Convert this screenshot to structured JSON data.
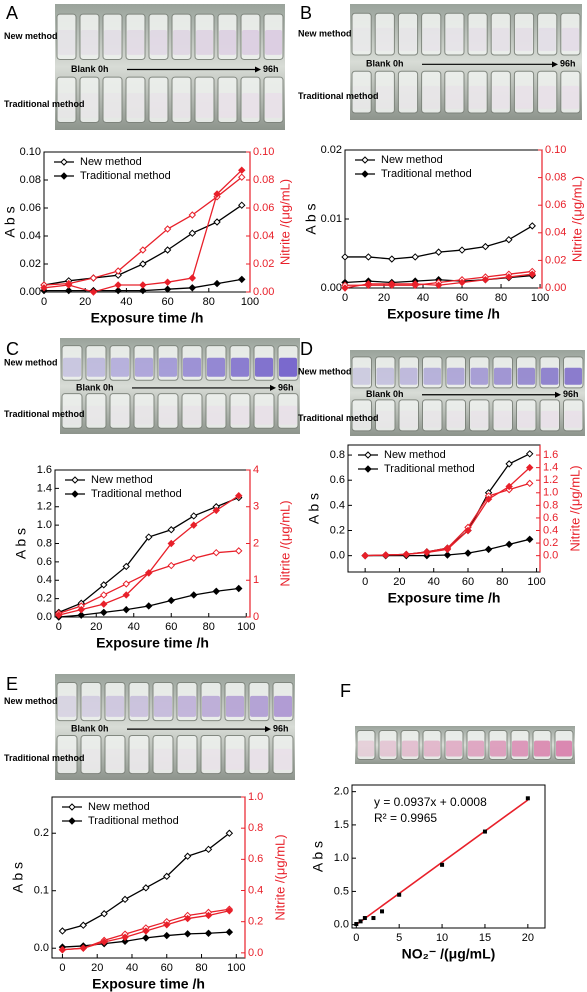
{
  "chart_data": [
    {
      "type": "dual-line",
      "panel": "A",
      "photo": {
        "top_label": "New method",
        "bottom_label": "Traditional method",
        "start": "Blank  0h",
        "end": "96h"
      },
      "x_label": "Exposure time /h",
      "y_label": "A b s",
      "y2_label": "Nitrite /(μg/mL)",
      "xlim": [
        0,
        100
      ],
      "xticks": [
        0,
        20,
        40,
        60,
        80,
        100
      ],
      "ylim": [
        0,
        0.1
      ],
      "yticks": [
        {
          "value": 0,
          "label": "0.00"
        },
        {
          "value": 0.02,
          "label": "0.02"
        },
        {
          "value": 0.04,
          "label": "0.04"
        },
        {
          "value": 0.06,
          "label": "0.06"
        },
        {
          "value": 0.08,
          "label": "0.08"
        },
        {
          "value": 0.1,
          "label": "0.10"
        }
      ],
      "y2lim": [
        0,
        0.1
      ],
      "y2ticks": [
        {
          "value": 0,
          "label": "0.00"
        },
        {
          "value": 0.02,
          "label": "0.02"
        },
        {
          "value": 0.04,
          "label": "0.04"
        },
        {
          "value": 0.06,
          "label": "0.06"
        },
        {
          "value": 0.08,
          "label": "0.08"
        },
        {
          "value": 0.1,
          "label": "0.10"
        }
      ],
      "legend": "upper left",
      "x": [
        0,
        12,
        24,
        36,
        48,
        60,
        72,
        84,
        96
      ],
      "series": [
        {
          "name": "New method",
          "color": "#000000",
          "marker": "open",
          "values": [
            0.005,
            0.008,
            0.01,
            0.012,
            0.02,
            0.03,
            0.042,
            0.05,
            0.062
          ]
        },
        {
          "name": "Traditional method",
          "color": "#000000",
          "marker": "filled",
          "values": [
            0.001,
            0.001,
            0.001,
            0.001,
            0.001,
            0.002,
            0.003,
            0.006,
            0.009
          ]
        },
        {
          "color": "#e8202a",
          "marker": "open",
          "axis": "y2",
          "values": [
            0.005,
            0.006,
            0.01,
            0.015,
            0.03,
            0.045,
            0.055,
            0.068,
            0.082
          ]
        },
        {
          "color": "#e8202a",
          "marker": "filled",
          "axis": "y2",
          "values": [
            0.003,
            0.005,
            0.0,
            0.005,
            0.005,
            0.007,
            0.01,
            0.07,
            0.087
          ]
        }
      ]
    },
    {
      "type": "dual-line",
      "panel": "B",
      "photo": {
        "top_label": "New method",
        "bottom_label": "Traditional method",
        "start": "Blank  0h",
        "end": "96h"
      },
      "x_label": "Exposure time /h",
      "y_label": "A b s",
      "y2_label": "Nitrite /(μg/mL)",
      "xlim": [
        0,
        101
      ],
      "xticks": [
        0,
        20,
        40,
        60,
        80,
        100
      ],
      "ylim": [
        0,
        0.02
      ],
      "yticks": [
        {
          "value": 0,
          "label": "0.00"
        },
        {
          "value": 0.01,
          "label": "0.01"
        },
        {
          "value": 0.02,
          "label": "0.02"
        }
      ],
      "y2lim": [
        0,
        0.1
      ],
      "y2ticks": [
        {
          "value": 0,
          "label": "0.00"
        },
        {
          "value": 0.02,
          "label": "0.02"
        },
        {
          "value": 0.04,
          "label": "0.04"
        },
        {
          "value": 0.06,
          "label": "0.06"
        },
        {
          "value": 0.08,
          "label": "0.08"
        },
        {
          "value": 0.1,
          "label": "0.10"
        }
      ],
      "legend": "upper left",
      "x": [
        0,
        12,
        24,
        36,
        48,
        60,
        72,
        84,
        96
      ],
      "series": [
        {
          "name": "New method",
          "color": "#000000",
          "marker": "open",
          "values": [
            0.0045,
            0.0045,
            0.0042,
            0.0045,
            0.0052,
            0.0055,
            0.006,
            0.007,
            0.009
          ]
        },
        {
          "name": "Traditional method",
          "color": "#000000",
          "marker": "filled",
          "values": [
            0.0008,
            0.001,
            0.0008,
            0.001,
            0.0012,
            0.001,
            0.0012,
            0.0015,
            0.0018
          ]
        },
        {
          "color": "#e8202a",
          "marker": "open",
          "axis": "y2",
          "values": [
            0.002,
            0.002,
            0.002,
            0.002,
            0.004,
            0.006,
            0.008,
            0.01,
            0.012
          ]
        },
        {
          "color": "#e8202a",
          "marker": "filled",
          "axis": "y2",
          "values": [
            0.0,
            0.003,
            0.003,
            0.003,
            0.002,
            0.004,
            0.006,
            0.008,
            0.01
          ]
        }
      ]
    },
    {
      "type": "dual-line",
      "panel": "C",
      "photo": {
        "top_label": "New method",
        "bottom_label": "Traditional method",
        "start": "Blank  0h",
        "end": "96h"
      },
      "x_label": "Exposure time /h",
      "y_label": "A b s",
      "y2_label": "Nitrite /(μg/mL)",
      "xlim": [
        -2,
        102
      ],
      "xticks": [
        0,
        20,
        40,
        60,
        80,
        100
      ],
      "ylim": [
        0,
        1.6
      ],
      "yticks": [
        {
          "value": 0,
          "label": "0.0"
        },
        {
          "value": 0.2,
          "label": "0.2"
        },
        {
          "value": 0.4,
          "label": "0.4"
        },
        {
          "value": 0.6,
          "label": "0.6"
        },
        {
          "value": 0.8,
          "label": "0.8"
        },
        {
          "value": 1,
          "label": "1.0"
        },
        {
          "value": 1.2,
          "label": "1.2"
        },
        {
          "value": 1.4,
          "label": "1.4"
        },
        {
          "value": 1.6,
          "label": "1.6"
        }
      ],
      "y2lim": [
        0,
        4
      ],
      "y2ticks": [
        0,
        1,
        2,
        3,
        4
      ],
      "legend": "upper left",
      "x": [
        0,
        12,
        24,
        36,
        48,
        60,
        72,
        84,
        96
      ],
      "series": [
        {
          "name": "New method",
          "color": "#000000",
          "marker": "open",
          "values": [
            0.05,
            0.15,
            0.35,
            0.55,
            0.87,
            0.95,
            1.1,
            1.2,
            1.3
          ]
        },
        {
          "name": "Traditional method",
          "color": "#000000",
          "marker": "filled",
          "values": [
            0.0,
            0.02,
            0.05,
            0.08,
            0.12,
            0.18,
            0.24,
            0.28,
            0.31
          ]
        },
        {
          "color": "#e8202a",
          "marker": "open",
          "axis": "y2",
          "values": [
            0.1,
            0.3,
            0.6,
            0.9,
            1.2,
            1.4,
            1.6,
            1.75,
            1.8
          ]
        },
        {
          "color": "#e8202a",
          "marker": "filled",
          "axis": "y2",
          "values": [
            0.05,
            0.2,
            0.35,
            0.6,
            1.2,
            2.0,
            2.5,
            2.9,
            3.3
          ]
        }
      ]
    },
    {
      "type": "dual-line",
      "panel": "D",
      "photo": {
        "top_label": "New method",
        "bottom_label": "Traditional method",
        "start": "Blank  0h",
        "end": "96h"
      },
      "x_label": "Exposure time /h",
      "y_label": "A b s",
      "y2_label": "Nitrite /(μg/mL)",
      "xlim": [
        -10,
        102
      ],
      "xticks": [
        0,
        20,
        40,
        60,
        80,
        100
      ],
      "ylim": [
        -0.13,
        0.88
      ],
      "yticks": [
        {
          "value": 0,
          "label": "0.0"
        },
        {
          "value": 0.2,
          "label": "0.2"
        },
        {
          "value": 0.4,
          "label": "0.4"
        },
        {
          "value": 0.6,
          "label": "0.6"
        },
        {
          "value": 0.8,
          "label": "0.8"
        }
      ],
      "y2lim": [
        -0.26,
        1.76
      ],
      "y2ticks": [
        {
          "value": 0,
          "label": "0.0"
        },
        {
          "value": 0.2,
          "label": "0.2"
        },
        {
          "value": 0.4,
          "label": "0.4"
        },
        {
          "value": 0.6,
          "label": "0.6"
        },
        {
          "value": 0.8,
          "label": "0.8"
        },
        {
          "value": 1,
          "label": "1.0"
        },
        {
          "value": 1.2,
          "label": "1.2"
        },
        {
          "value": 1.4,
          "label": "1.4"
        },
        {
          "value": 1.6,
          "label": "1.6"
        }
      ],
      "legend": "upper left",
      "x": [
        0,
        12,
        24,
        36,
        48,
        60,
        72,
        84,
        96
      ],
      "series": [
        {
          "name": "New method",
          "color": "#000000",
          "marker": "open",
          "values": [
            0.0,
            0.005,
            0.01,
            0.03,
            0.06,
            0.2,
            0.5,
            0.73,
            0.81
          ]
        },
        {
          "name": "Traditional method",
          "color": "#000000",
          "marker": "filled",
          "values": [
            0.0,
            0.0,
            0.0,
            0.0,
            0.005,
            0.02,
            0.05,
            0.09,
            0.13
          ]
        },
        {
          "color": "#e8202a",
          "marker": "open",
          "axis": "y2",
          "values": [
            0.0,
            0.01,
            0.02,
            0.06,
            0.12,
            0.45,
            0.95,
            1.05,
            1.15
          ]
        },
        {
          "color": "#e8202a",
          "marker": "filled",
          "axis": "y2",
          "values": [
            0.0,
            0.01,
            0.02,
            0.05,
            0.1,
            0.4,
            0.9,
            1.1,
            1.4
          ]
        }
      ]
    },
    {
      "type": "dual-line",
      "panel": "E",
      "photo": {
        "top_label": "New method",
        "bottom_label": "Traditional method",
        "start": "Blank  0h",
        "end": "96h"
      },
      "x_label": "Exposure time /h",
      "y_label": "A b s",
      "y2_label": "Nitrite /(μg/mL)",
      "xlim": [
        -6,
        105
      ],
      "xticks": [
        0,
        20,
        40,
        60,
        80,
        100
      ],
      "ylim": [
        -0.017,
        0.263
      ],
      "yticks": [
        {
          "value": 0,
          "label": "0.0"
        },
        {
          "value": 0.1,
          "label": "0.1"
        },
        {
          "value": 0.2,
          "label": "0.2"
        }
      ],
      "y2lim": [
        -0.033,
        1.0
      ],
      "y2ticks": [
        {
          "value": 0,
          "label": "0.0"
        },
        {
          "value": 0.2,
          "label": "0.2"
        },
        {
          "value": 0.4,
          "label": "0.4"
        },
        {
          "value": 0.6,
          "label": "0.6"
        },
        {
          "value": 0.8,
          "label": "0.8"
        },
        {
          "value": 1,
          "label": "1.0"
        }
      ],
      "legend": "upper left",
      "x": [
        0,
        12,
        24,
        36,
        48,
        60,
        72,
        84,
        96
      ],
      "series": [
        {
          "name": "New method",
          "color": "#000000",
          "marker": "open",
          "values": [
            0.03,
            0.04,
            0.06,
            0.085,
            0.105,
            0.125,
            0.16,
            0.172,
            0.2
          ]
        },
        {
          "name": "Traditional method",
          "color": "#000000",
          "marker": "filled",
          "values": [
            0.002,
            0.004,
            0.008,
            0.012,
            0.018,
            0.022,
            0.025,
            0.026,
            0.028
          ]
        },
        {
          "color": "#e8202a",
          "marker": "open",
          "axis": "y2",
          "values": [
            0.02,
            0.03,
            0.08,
            0.12,
            0.16,
            0.2,
            0.24,
            0.26,
            0.28
          ]
        },
        {
          "color": "#e8202a",
          "marker": "filled",
          "axis": "y2",
          "values": [
            0.02,
            0.03,
            0.07,
            0.1,
            0.14,
            0.18,
            0.22,
            0.24,
            0.27
          ]
        }
      ]
    },
    {
      "type": "scatter",
      "panel": "F",
      "x_label": "NO₂⁻ /(μg/mL)",
      "y_label": "A b s",
      "equation": "y = 0.0937x + 0.0008",
      "r_squared": "R² = 0.9965",
      "fit_line": {
        "slope": 0.0937,
        "intercept": 0.0008,
        "color": "#e8202a"
      },
      "xlim": [
        -0.5,
        22
      ],
      "xticks": [
        0,
        5,
        10,
        15,
        20
      ],
      "ylim": [
        -0.05,
        2.1
      ],
      "yticks": [
        {
          "value": 0,
          "label": "0.0"
        },
        {
          "value": 0.5,
          "label": "0.5"
        },
        {
          "value": 1,
          "label": "1.0"
        },
        {
          "value": 1.5,
          "label": "1.5"
        },
        {
          "value": 2,
          "label": "2.0"
        }
      ],
      "x": [
        0,
        0.5,
        1,
        2,
        3,
        5,
        10,
        15,
        20
      ],
      "values": [
        0.01,
        0.05,
        0.1,
        0.1,
        0.2,
        0.45,
        0.9,
        1.4,
        1.9
      ],
      "color": "#000000"
    }
  ]
}
